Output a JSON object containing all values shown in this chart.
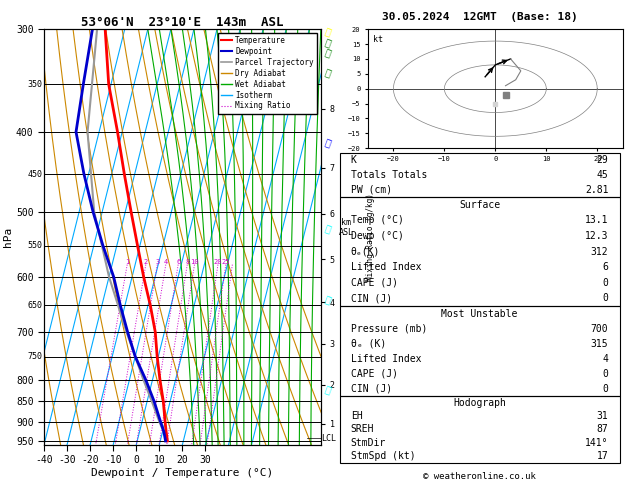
{
  "title_left": "53°06'N  23°10'E  143m  ASL",
  "title_right": "30.05.2024  12GMT  (Base: 18)",
  "xlabel": "Dewpoint / Temperature (°C)",
  "ylabel_left": "hPa",
  "pressure_levels": [
    300,
    350,
    400,
    450,
    500,
    550,
    600,
    650,
    700,
    750,
    800,
    850,
    900,
    950
  ],
  "temp_profile_p": [
    950,
    925,
    900,
    850,
    800,
    750,
    700,
    650,
    600,
    550,
    500,
    450,
    400,
    350,
    300
  ],
  "temp_profile_t": [
    13.1,
    11.5,
    10.0,
    7.0,
    3.2,
    -0.5,
    -4.0,
    -9.0,
    -15.0,
    -21.0,
    -27.5,
    -34.5,
    -42.0,
    -51.0,
    -58.5
  ],
  "dewp_profile_p": [
    950,
    925,
    900,
    850,
    800,
    750,
    700,
    650,
    600,
    550,
    500,
    450,
    400,
    350,
    300
  ],
  "dewp_profile_t": [
    12.3,
    10.5,
    8.0,
    3.0,
    -3.0,
    -10.0,
    -16.0,
    -22.0,
    -28.0,
    -36.0,
    -44.0,
    -52.0,
    -60.0,
    -62.0,
    -64.0
  ],
  "parcel_profile_p": [
    950,
    900,
    850,
    800,
    700,
    600,
    500,
    400,
    300
  ],
  "parcel_profile_t": [
    13.1,
    7.5,
    2.0,
    -4.0,
    -16.5,
    -30.0,
    -43.5,
    -55.0,
    -62.0
  ],
  "lcl_pressure": 943,
  "km_ticks": [
    1,
    2,
    3,
    4,
    5,
    6,
    7,
    8
  ],
  "km_pressures": [
    905,
    812,
    724,
    644,
    571,
    503,
    442,
    375
  ],
  "color_temp": "#ff0000",
  "color_dewp": "#0000cc",
  "color_parcel": "#999999",
  "color_dry_adiabat": "#cc8800",
  "color_wet_adiabat": "#00aa00",
  "color_isotherm": "#00aaff",
  "color_mixing": "#cc00cc",
  "bg_color": "#ffffff",
  "stats_k": 29,
  "stats_totals": 45,
  "stats_pw": "2.81",
  "surf_temp": "13.1",
  "surf_dewp": "12.3",
  "surf_the": 312,
  "surf_li": 6,
  "surf_cape": 0,
  "surf_cin": 0,
  "mu_press": 700,
  "mu_the": 315,
  "mu_li": 4,
  "mu_cape": 0,
  "mu_cin": 0,
  "hodo_eh": 31,
  "hodo_sreh": 87,
  "hodo_stmdir": "141°",
  "hodo_stmspd": 17,
  "copyright": "© weatheronline.co.uk",
  "pmin": 300,
  "pmax": 960,
  "tmin": -40,
  "tmax": 35,
  "skew": 45.0
}
